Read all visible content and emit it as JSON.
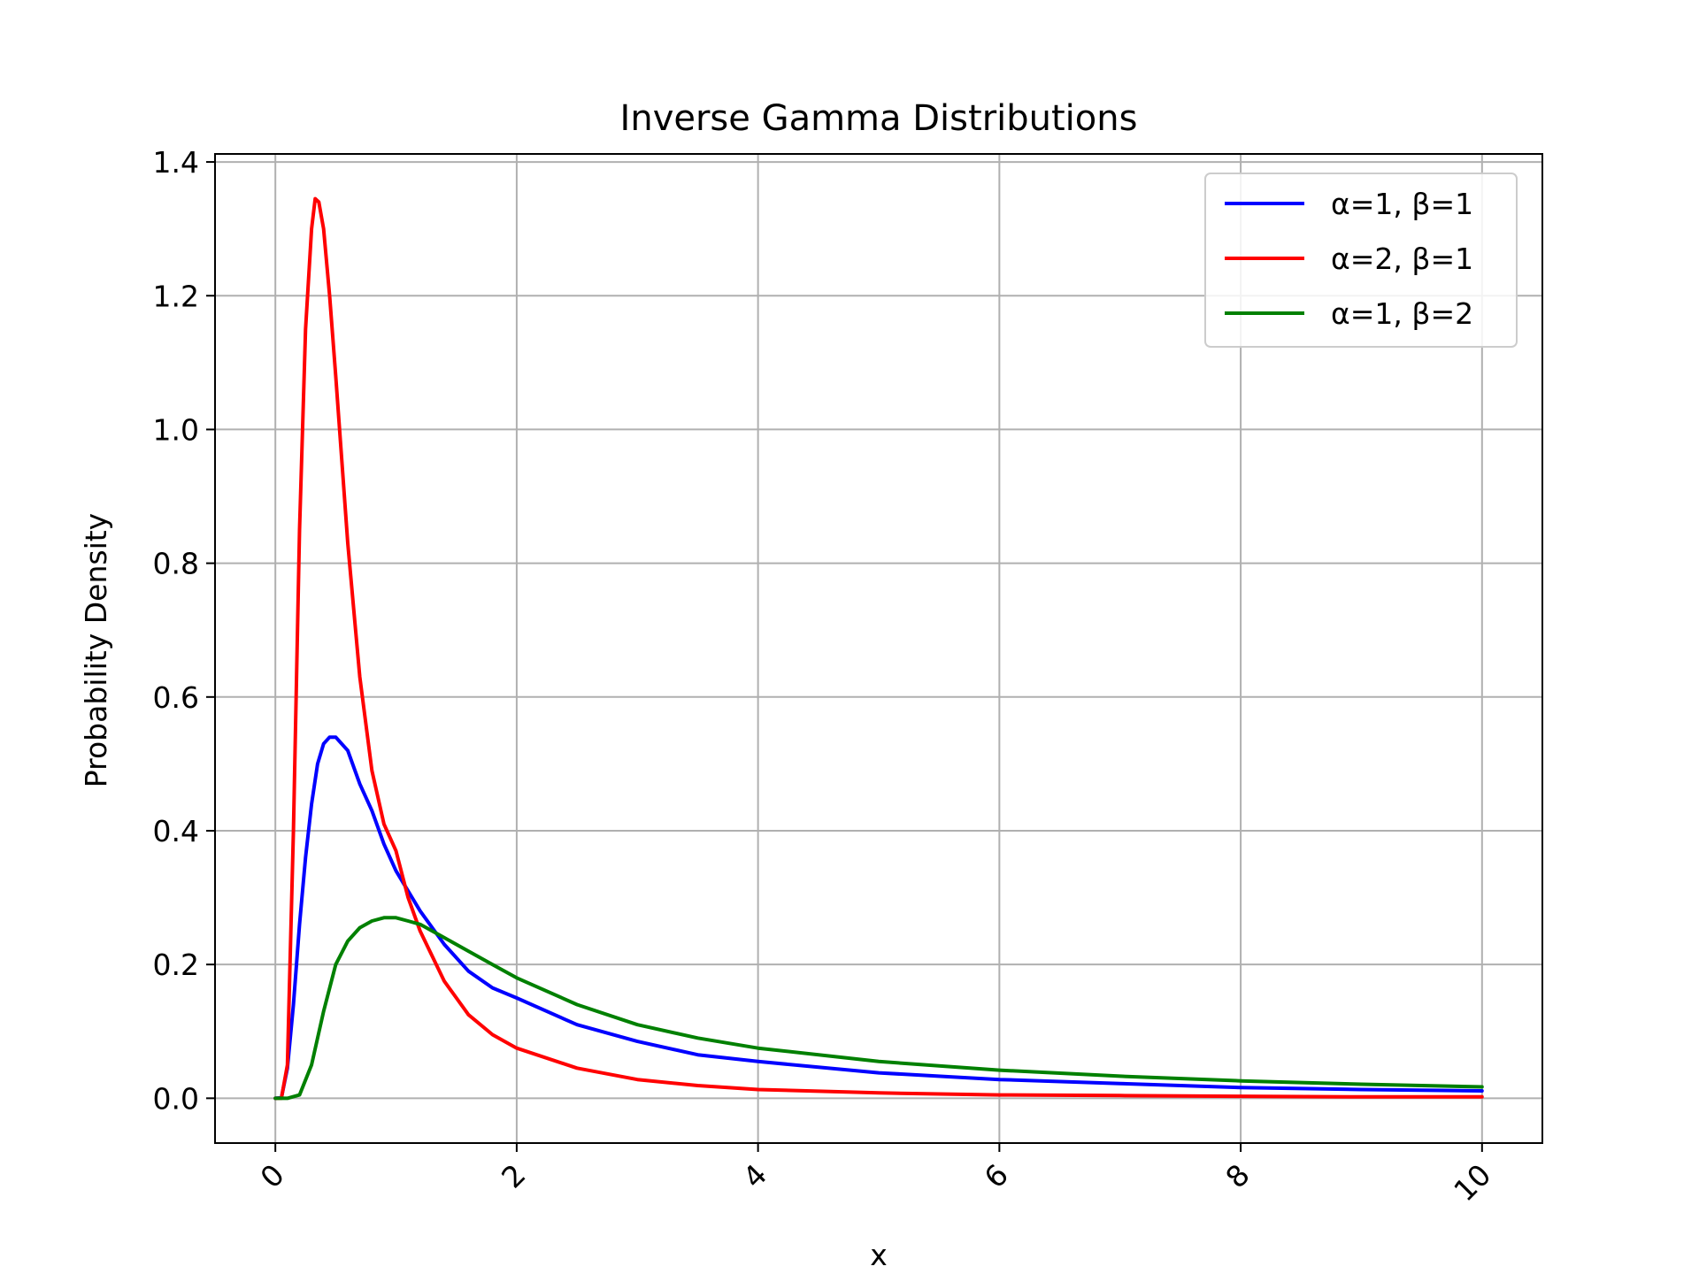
{
  "chart_data": {
    "type": "line",
    "title": "Inverse Gamma Distributions",
    "xlabel": "x",
    "ylabel": "Probability Density",
    "xlim": [
      -0.5,
      10.5
    ],
    "ylim": [
      -0.067,
      1.412
    ],
    "xticks": [
      0,
      2,
      4,
      6,
      8,
      10
    ],
    "xtick_labels": [
      "0",
      "2",
      "4",
      "6",
      "8",
      "10"
    ],
    "xtick_rotation": 45,
    "yticks": [
      0.0,
      0.2,
      0.4,
      0.6,
      0.8,
      1.0,
      1.2,
      1.4
    ],
    "ytick_labels": [
      "0.0",
      "0.2",
      "0.4",
      "0.6",
      "0.8",
      "1.0",
      "1.2",
      "1.4"
    ],
    "grid": true,
    "legend_position": "top-right",
    "series": [
      {
        "name": "α=1, β=1",
        "color": "#0000ff",
        "x": [
          0,
          0.05,
          0.1,
          0.15,
          0.2,
          0.25,
          0.3,
          0.35,
          0.4,
          0.45,
          0.5,
          0.6,
          0.7,
          0.8,
          0.9,
          1.0,
          1.2,
          1.4,
          1.6,
          1.8,
          2.0,
          2.5,
          3.0,
          3.5,
          4.0,
          5.0,
          6.0,
          7.0,
          8.0,
          9.0,
          10.0
        ],
        "y": [
          0,
          0.0008,
          0.045,
          0.14,
          0.26,
          0.36,
          0.44,
          0.5,
          0.53,
          0.54,
          0.54,
          0.52,
          0.47,
          0.43,
          0.38,
          0.34,
          0.28,
          0.23,
          0.19,
          0.165,
          0.15,
          0.11,
          0.085,
          0.065,
          0.055,
          0.038,
          0.028,
          0.022,
          0.016,
          0.013,
          0.011
        ]
      },
      {
        "name": "α=2, β=1",
        "color": "#ff0000",
        "x": [
          0,
          0.05,
          0.1,
          0.15,
          0.2,
          0.25,
          0.3,
          0.33,
          0.36,
          0.4,
          0.45,
          0.5,
          0.6,
          0.7,
          0.8,
          0.9,
          1.0,
          1.1,
          1.2,
          1.4,
          1.6,
          1.8,
          2.0,
          2.5,
          3.0,
          3.5,
          4.0,
          5.0,
          6.0,
          7.0,
          8.0,
          9.0,
          10.0
        ],
        "y": [
          0,
          0.0,
          0.05,
          0.4,
          0.85,
          1.15,
          1.3,
          1.345,
          1.34,
          1.3,
          1.2,
          1.08,
          0.83,
          0.63,
          0.49,
          0.41,
          0.37,
          0.3,
          0.25,
          0.175,
          0.125,
          0.095,
          0.075,
          0.045,
          0.028,
          0.019,
          0.013,
          0.008,
          0.005,
          0.004,
          0.003,
          0.002,
          0.002
        ]
      },
      {
        "name": "α=1, β=2",
        "color": "#008000",
        "x": [
          0,
          0.1,
          0.2,
          0.3,
          0.4,
          0.5,
          0.6,
          0.7,
          0.8,
          0.9,
          1.0,
          1.1,
          1.2,
          1.4,
          1.6,
          1.8,
          2.0,
          2.5,
          3.0,
          3.5,
          4.0,
          5.0,
          6.0,
          7.0,
          8.0,
          9.0,
          10.0
        ],
        "y": [
          0,
          0.0,
          0.005,
          0.05,
          0.13,
          0.2,
          0.235,
          0.255,
          0.265,
          0.27,
          0.27,
          0.265,
          0.26,
          0.24,
          0.22,
          0.2,
          0.18,
          0.14,
          0.11,
          0.09,
          0.075,
          0.055,
          0.042,
          0.033,
          0.026,
          0.021,
          0.017
        ]
      }
    ]
  }
}
